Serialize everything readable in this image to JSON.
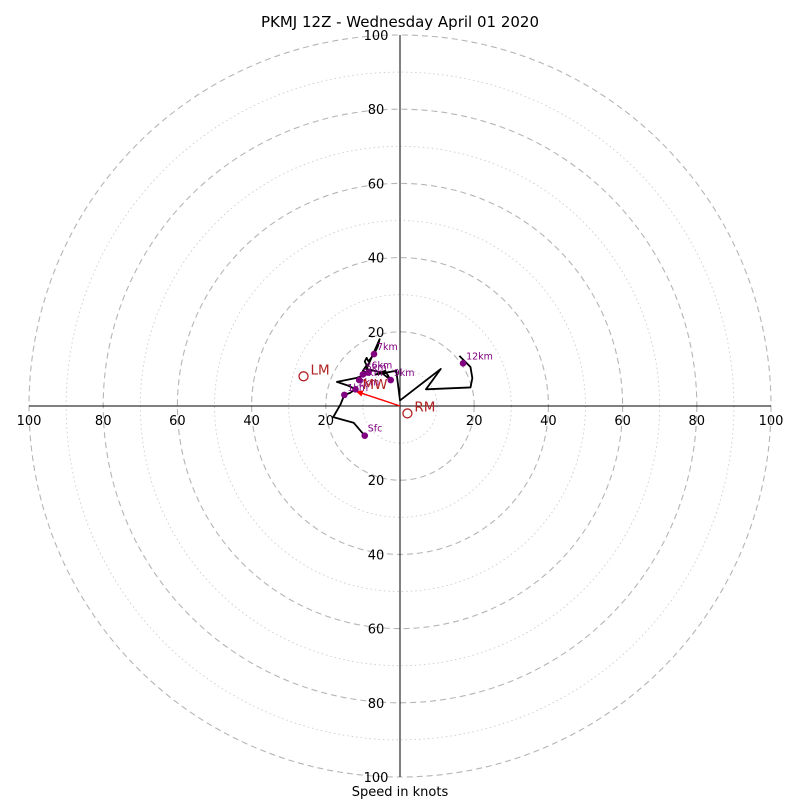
{
  "chart_data": {
    "type": "hodograph",
    "title": "PKMJ 12Z - Wednesday April 01 2020",
    "xlabel": "Speed in knots",
    "rlim": [
      0,
      100
    ],
    "ring_labels": [
      "20",
      "40",
      "60",
      "80",
      "100"
    ],
    "hodograph_line": {
      "color": "#000000",
      "points": [
        [
          -9.5,
          -8
        ],
        [
          -12.5,
          -4.5
        ],
        [
          -18,
          -3
        ],
        [
          -16,
          0.5
        ],
        [
          -15,
          3
        ],
        [
          -13.5,
          3.5
        ],
        [
          -12,
          4.5
        ],
        [
          -14,
          5.5
        ],
        [
          -17,
          6.5
        ],
        [
          -12,
          7.5
        ],
        [
          -9,
          8.5
        ],
        [
          -9,
          9
        ],
        [
          -10,
          9.5
        ],
        [
          -9,
          11
        ],
        [
          -9.5,
          12
        ],
        [
          -9,
          13
        ],
        [
          -8.5,
          12
        ],
        [
          -7,
          14
        ],
        [
          -6,
          16
        ],
        [
          -5.5,
          18
        ],
        [
          -9,
          10
        ],
        [
          -5,
          9
        ],
        [
          -2.5,
          7
        ],
        [
          -4,
          9.5
        ],
        [
          -6.5,
          8.5
        ],
        [
          -1,
          9.5
        ],
        [
          0,
          1.5
        ],
        [
          11,
          10
        ],
        [
          7,
          4.5
        ],
        [
          19,
          5
        ],
        [
          19.5,
          7.5
        ],
        [
          19,
          10.5
        ],
        [
          16,
          13.5
        ]
      ]
    },
    "levels": [
      {
        "label": "Sfc",
        "u": -9.5,
        "v": -8
      },
      {
        "label": "1km",
        "u": -15,
        "v": 3
      },
      {
        "label": "2km",
        "u": -12,
        "v": 4.5
      },
      {
        "label": "3km",
        "u": -11,
        "v": 7
      },
      {
        "label": "5km",
        "u": -10,
        "v": 8.5
      },
      {
        "label": "6km",
        "u": -8.5,
        "v": 9
      },
      {
        "label": "7km",
        "u": -7,
        "v": 14
      },
      {
        "label": "9km",
        "u": -2.5,
        "v": 7
      },
      {
        "label": "12km",
        "u": 17,
        "v": 11.5
      }
    ],
    "level_point_color": "#800080",
    "storm_motion": [
      {
        "label": "LM",
        "u": -26,
        "v": 8
      },
      {
        "label": "RM",
        "u": 2,
        "v": -2
      },
      {
        "label": "MW",
        "u": -12,
        "v": 4
      }
    ],
    "storm_motion_color": "#b22222",
    "storm_vector": {
      "from": [
        0,
        0
      ],
      "to": [
        -12,
        4
      ],
      "color": "#ff0000"
    }
  }
}
